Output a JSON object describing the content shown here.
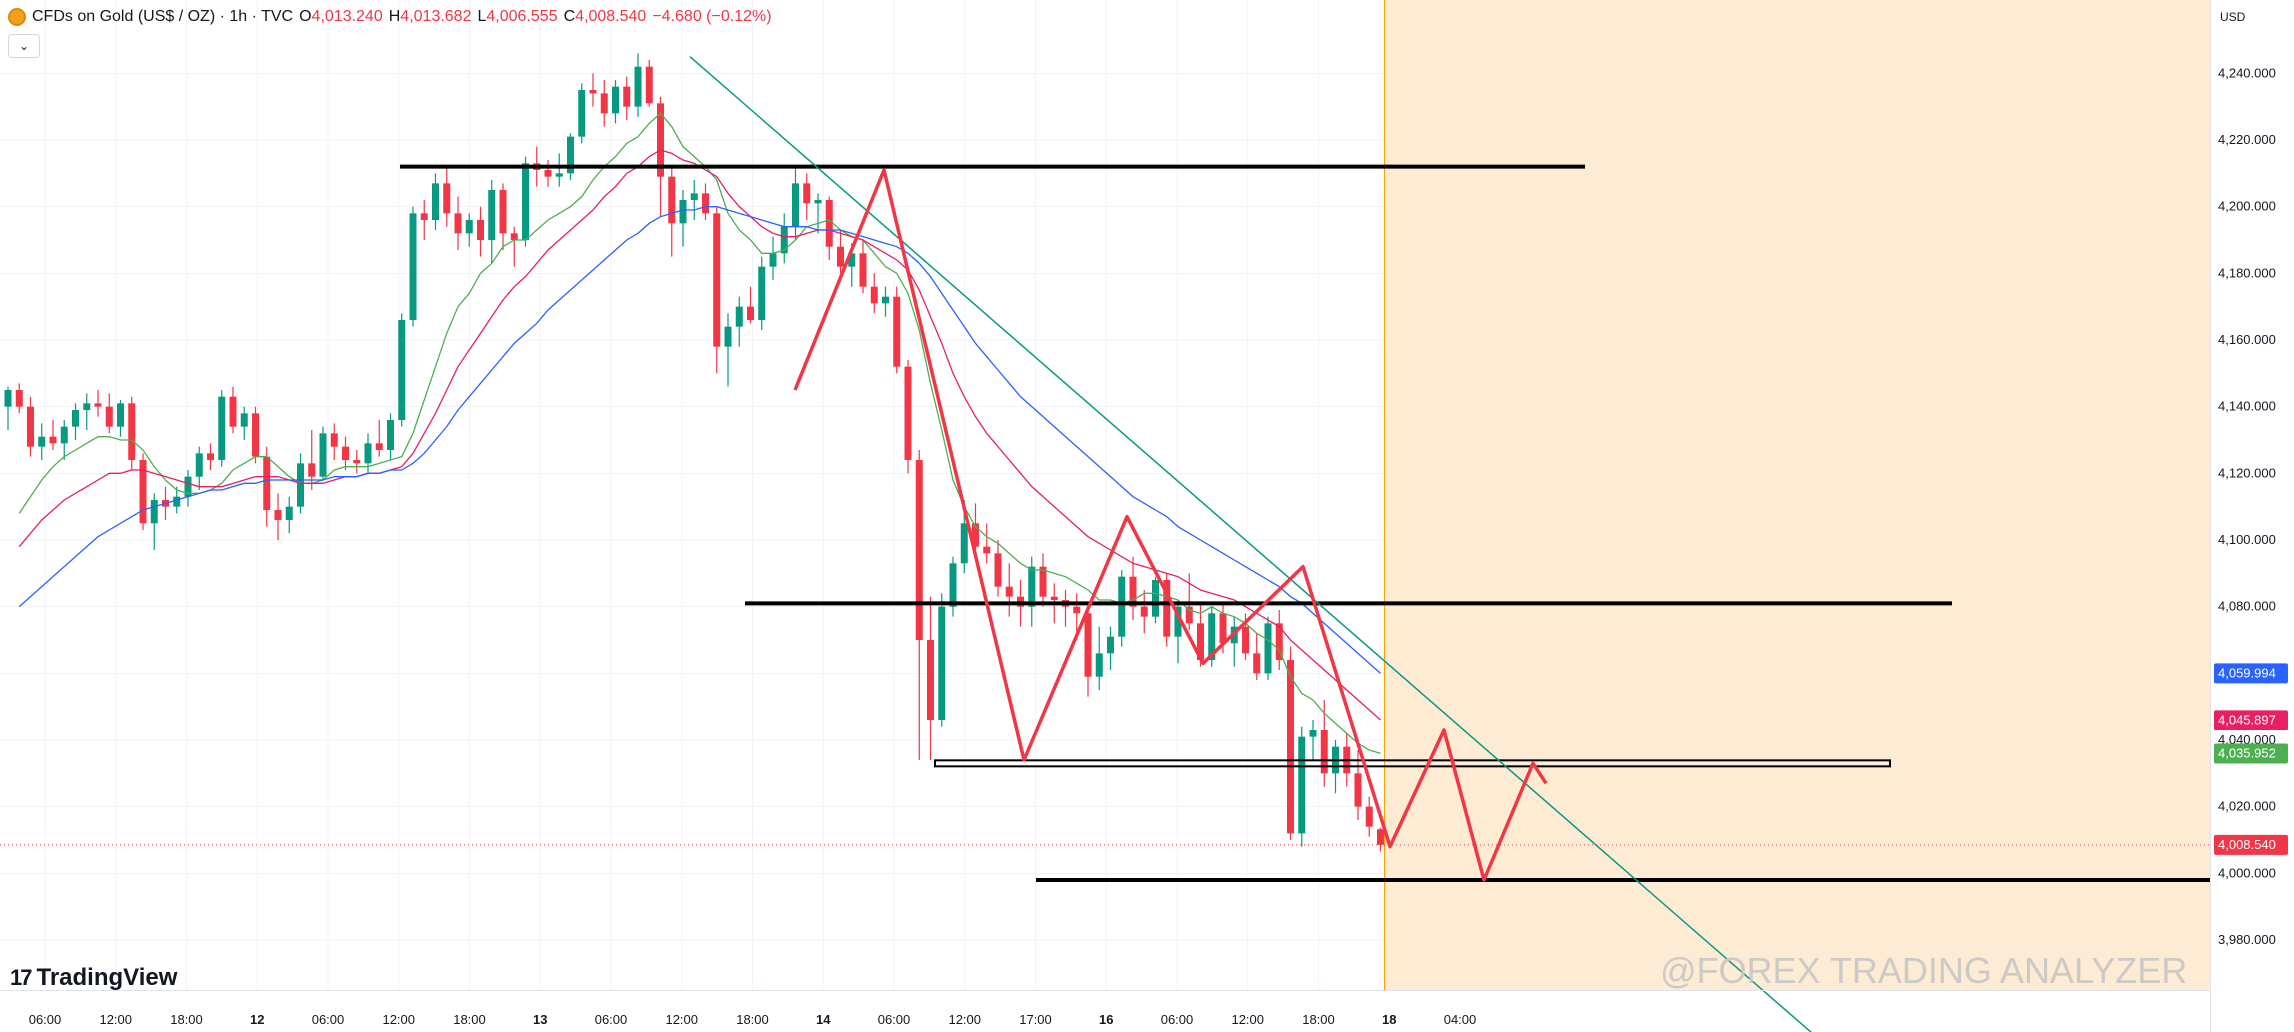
{
  "header": {
    "title": "CFDs on Gold (US$ / OZ) · 1h · TVC",
    "open_label": "O",
    "open": "4,013.240",
    "high_label": "H",
    "high": "4,013.682",
    "low_label": "L",
    "low": "4,006.555",
    "close_label": "C",
    "close": "4,008.540",
    "change": "−4.680 (−0.12%)",
    "collapse_icon": "chevron-down-icon"
  },
  "currency": "USD",
  "branding": {
    "logo": "TradingView",
    "watermark": "@FOREX TRADING ANALYZER"
  },
  "colors": {
    "up": "#089981",
    "down": "#f23645",
    "ma_fast": "#4caf50",
    "ma_mid": "#e91e63",
    "ma_slow": "#2962ff",
    "trendline": "#089981",
    "zigzag": "#f23645",
    "forecast_zone": "#fdebd3",
    "current_time_line": "#f7a600"
  },
  "chart_data": {
    "type": "candlestick",
    "y_axis": {
      "ylim": [
        3965,
        4250
      ],
      "ticks": [
        "3,980.000",
        "4,000.000",
        "4,020.000",
        "4,040.000",
        "4,060.000",
        "4,080.000",
        "4,100.000",
        "4,120.000",
        "4,140.000",
        "4,160.000",
        "4,180.000",
        "4,200.000",
        "4,220.000",
        "4,240.000"
      ]
    },
    "x_axis": {
      "ticks": [
        {
          "label": "06:00",
          "bold": false
        },
        {
          "label": "12:00",
          "bold": false
        },
        {
          "label": "18:00",
          "bold": false
        },
        {
          "label": "12",
          "bold": true
        },
        {
          "label": "06:00",
          "bold": false
        },
        {
          "label": "12:00",
          "bold": false
        },
        {
          "label": "18:00",
          "bold": false
        },
        {
          "label": "13",
          "bold": true
        },
        {
          "label": "06:00",
          "bold": false
        },
        {
          "label": "12:00",
          "bold": false
        },
        {
          "label": "18:00",
          "bold": false
        },
        {
          "label": "14",
          "bold": true
        },
        {
          "label": "06:00",
          "bold": false
        },
        {
          "label": "12:00",
          "bold": false
        },
        {
          "label": "17:00",
          "bold": false
        },
        {
          "label": "16",
          "bold": true
        },
        {
          "label": "06:00",
          "bold": false
        },
        {
          "label": "12:00",
          "bold": false
        },
        {
          "label": "18:00",
          "bold": false
        },
        {
          "label": "18",
          "bold": true
        },
        {
          "label": "04:00",
          "bold": false
        }
      ]
    },
    "candles": [
      {
        "o": 4140,
        "h": 4146,
        "l": 4133,
        "c": 4145
      },
      {
        "o": 4145,
        "h": 4147,
        "l": 4138,
        "c": 4140
      },
      {
        "o": 4140,
        "h": 4143,
        "l": 4125,
        "c": 4128
      },
      {
        "o": 4128,
        "h": 4135,
        "l": 4124,
        "c": 4131
      },
      {
        "o": 4131,
        "h": 4136,
        "l": 4127,
        "c": 4129
      },
      {
        "o": 4129,
        "h": 4136,
        "l": 4124,
        "c": 4134
      },
      {
        "o": 4134,
        "h": 4141,
        "l": 4130,
        "c": 4139
      },
      {
        "o": 4139,
        "h": 4144,
        "l": 4133,
        "c": 4141
      },
      {
        "o": 4141,
        "h": 4145,
        "l": 4137,
        "c": 4140
      },
      {
        "o": 4140,
        "h": 4144,
        "l": 4132,
        "c": 4134
      },
      {
        "o": 4134,
        "h": 4142,
        "l": 4131,
        "c": 4141
      },
      {
        "o": 4141,
        "h": 4143,
        "l": 4121,
        "c": 4124
      },
      {
        "o": 4124,
        "h": 4126,
        "l": 4103,
        "c": 4105
      },
      {
        "o": 4105,
        "h": 4114,
        "l": 4097,
        "c": 4112
      },
      {
        "o": 4112,
        "h": 4116,
        "l": 4106,
        "c": 4110
      },
      {
        "o": 4110,
        "h": 4116,
        "l": 4108,
        "c": 4113
      },
      {
        "o": 4113,
        "h": 4121,
        "l": 4110,
        "c": 4119
      },
      {
        "o": 4119,
        "h": 4128,
        "l": 4115,
        "c": 4126
      },
      {
        "o": 4126,
        "h": 4129,
        "l": 4121,
        "c": 4124
      },
      {
        "o": 4124,
        "h": 4145,
        "l": 4122,
        "c": 4143
      },
      {
        "o": 4143,
        "h": 4146,
        "l": 4132,
        "c": 4134
      },
      {
        "o": 4134,
        "h": 4140,
        "l": 4130,
        "c": 4138
      },
      {
        "o": 4138,
        "h": 4140,
        "l": 4123,
        "c": 4125
      },
      {
        "o": 4125,
        "h": 4128,
        "l": 4104,
        "c": 4109
      },
      {
        "o": 4109,
        "h": 4114,
        "l": 4100,
        "c": 4106
      },
      {
        "o": 4106,
        "h": 4113,
        "l": 4102,
        "c": 4110
      },
      {
        "o": 4110,
        "h": 4126,
        "l": 4108,
        "c": 4123
      },
      {
        "o": 4123,
        "h": 4133,
        "l": 4115,
        "c": 4119
      },
      {
        "o": 4119,
        "h": 4134,
        "l": 4118,
        "c": 4132
      },
      {
        "o": 4132,
        "h": 4135,
        "l": 4124,
        "c": 4128
      },
      {
        "o": 4128,
        "h": 4131,
        "l": 4121,
        "c": 4124
      },
      {
        "o": 4124,
        "h": 4127,
        "l": 4120,
        "c": 4123
      },
      {
        "o": 4123,
        "h": 4132,
        "l": 4120,
        "c": 4129
      },
      {
        "o": 4129,
        "h": 4136,
        "l": 4125,
        "c": 4127
      },
      {
        "o": 4127,
        "h": 4138,
        "l": 4124,
        "c": 4136
      },
      {
        "o": 4136,
        "h": 4168,
        "l": 4134,
        "c": 4166
      },
      {
        "o": 4166,
        "h": 4200,
        "l": 4164,
        "c": 4198
      },
      {
        "o": 4198,
        "h": 4202,
        "l": 4190,
        "c": 4196
      },
      {
        "o": 4196,
        "h": 4210,
        "l": 4193,
        "c": 4207
      },
      {
        "o": 4207,
        "h": 4212,
        "l": 4194,
        "c": 4198
      },
      {
        "o": 4198,
        "h": 4203,
        "l": 4187,
        "c": 4192
      },
      {
        "o": 4192,
        "h": 4198,
        "l": 4188,
        "c": 4196
      },
      {
        "o": 4196,
        "h": 4200,
        "l": 4185,
        "c": 4190
      },
      {
        "o": 4190,
        "h": 4208,
        "l": 4183,
        "c": 4205
      },
      {
        "o": 4205,
        "h": 4207,
        "l": 4187,
        "c": 4192
      },
      {
        "o": 4192,
        "h": 4194,
        "l": 4182,
        "c": 4190
      },
      {
        "o": 4190,
        "h": 4215,
        "l": 4188,
        "c": 4213
      },
      {
        "o": 4213,
        "h": 4218,
        "l": 4206,
        "c": 4211
      },
      {
        "o": 4211,
        "h": 4214,
        "l": 4206,
        "c": 4209
      },
      {
        "o": 4209,
        "h": 4216,
        "l": 4206,
        "c": 4210
      },
      {
        "o": 4210,
        "h": 4222,
        "l": 4208,
        "c": 4221
      },
      {
        "o": 4221,
        "h": 4237,
        "l": 4219,
        "c": 4235
      },
      {
        "o": 4235,
        "h": 4240,
        "l": 4230,
        "c": 4234
      },
      {
        "o": 4234,
        "h": 4238,
        "l": 4224,
        "c": 4228
      },
      {
        "o": 4228,
        "h": 4238,
        "l": 4225,
        "c": 4236
      },
      {
        "o": 4236,
        "h": 4239,
        "l": 4226,
        "c": 4230
      },
      {
        "o": 4230,
        "h": 4246,
        "l": 4227,
        "c": 4242
      },
      {
        "o": 4242,
        "h": 4244,
        "l": 4230,
        "c": 4231
      },
      {
        "o": 4231,
        "h": 4233,
        "l": 4197,
        "c": 4209
      },
      {
        "o": 4209,
        "h": 4212,
        "l": 4185,
        "c": 4195
      },
      {
        "o": 4195,
        "h": 4205,
        "l": 4188,
        "c": 4202
      },
      {
        "o": 4202,
        "h": 4208,
        "l": 4196,
        "c": 4204
      },
      {
        "o": 4204,
        "h": 4207,
        "l": 4196,
        "c": 4198
      },
      {
        "o": 4198,
        "h": 4200,
        "l": 4150,
        "c": 4158
      },
      {
        "o": 4158,
        "h": 4168,
        "l": 4146,
        "c": 4164
      },
      {
        "o": 4164,
        "h": 4173,
        "l": 4158,
        "c": 4170
      },
      {
        "o": 4170,
        "h": 4176,
        "l": 4165,
        "c": 4166
      },
      {
        "o": 4166,
        "h": 4185,
        "l": 4163,
        "c": 4182
      },
      {
        "o": 4182,
        "h": 4191,
        "l": 4178,
        "c": 4186
      },
      {
        "o": 4186,
        "h": 4198,
        "l": 4183,
        "c": 4194
      },
      {
        "o": 4194,
        "h": 4212,
        "l": 4190,
        "c": 4207
      },
      {
        "o": 4207,
        "h": 4210,
        "l": 4196,
        "c": 4201
      },
      {
        "o": 4201,
        "h": 4204,
        "l": 4192,
        "c": 4202
      },
      {
        "o": 4202,
        "h": 4203,
        "l": 4184,
        "c": 4188
      },
      {
        "o": 4188,
        "h": 4193,
        "l": 4180,
        "c": 4182
      },
      {
        "o": 4182,
        "h": 4189,
        "l": 4176,
        "c": 4186
      },
      {
        "o": 4186,
        "h": 4190,
        "l": 4174,
        "c": 4176
      },
      {
        "o": 4176,
        "h": 4180,
        "l": 4168,
        "c": 4171
      },
      {
        "o": 4171,
        "h": 4176,
        "l": 4167,
        "c": 4173
      },
      {
        "o": 4173,
        "h": 4176,
        "l": 4150,
        "c": 4152
      },
      {
        "o": 4152,
        "h": 4154,
        "l": 4120,
        "c": 4124
      },
      {
        "o": 4124,
        "h": 4127,
        "l": 4034,
        "c": 4070
      },
      {
        "o": 4070,
        "h": 4083,
        "l": 4034,
        "c": 4046
      },
      {
        "o": 4046,
        "h": 4084,
        "l": 4044,
        "c": 4080
      },
      {
        "o": 4080,
        "h": 4095,
        "l": 4077,
        "c": 4093
      },
      {
        "o": 4093,
        "h": 4112,
        "l": 4090,
        "c": 4105
      },
      {
        "o": 4105,
        "h": 4111,
        "l": 4097,
        "c": 4098
      },
      {
        "o": 4098,
        "h": 4105,
        "l": 4093,
        "c": 4096
      },
      {
        "o": 4096,
        "h": 4100,
        "l": 4083,
        "c": 4086
      },
      {
        "o": 4086,
        "h": 4093,
        "l": 4077,
        "c": 4083
      },
      {
        "o": 4083,
        "h": 4088,
        "l": 4074,
        "c": 4080
      },
      {
        "o": 4080,
        "h": 4095,
        "l": 4074,
        "c": 4092
      },
      {
        "o": 4092,
        "h": 4096,
        "l": 4080,
        "c": 4083
      },
      {
        "o": 4083,
        "h": 4087,
        "l": 4075,
        "c": 4082
      },
      {
        "o": 4082,
        "h": 4085,
        "l": 4074,
        "c": 4080
      },
      {
        "o": 4080,
        "h": 4084,
        "l": 4070,
        "c": 4078
      },
      {
        "o": 4078,
        "h": 4081,
        "l": 4053,
        "c": 4059
      },
      {
        "o": 4059,
        "h": 4074,
        "l": 4055,
        "c": 4066
      },
      {
        "o": 4066,
        "h": 4074,
        "l": 4061,
        "c": 4071
      },
      {
        "o": 4071,
        "h": 4091,
        "l": 4068,
        "c": 4089
      },
      {
        "o": 4089,
        "h": 4095,
        "l": 4076,
        "c": 4080
      },
      {
        "o": 4080,
        "h": 4085,
        "l": 4072,
        "c": 4077
      },
      {
        "o": 4077,
        "h": 4089,
        "l": 4075,
        "c": 4088
      },
      {
        "o": 4088,
        "h": 4090,
        "l": 4068,
        "c": 4071
      },
      {
        "o": 4071,
        "h": 4082,
        "l": 4063,
        "c": 4080
      },
      {
        "o": 4080,
        "h": 4090,
        "l": 4073,
        "c": 4075
      },
      {
        "o": 4075,
        "h": 4081,
        "l": 4062,
        "c": 4064
      },
      {
        "o": 4064,
        "h": 4080,
        "l": 4062,
        "c": 4078
      },
      {
        "o": 4078,
        "h": 4081,
        "l": 4066,
        "c": 4069
      },
      {
        "o": 4069,
        "h": 4077,
        "l": 4062,
        "c": 4074
      },
      {
        "o": 4074,
        "h": 4078,
        "l": 4064,
        "c": 4066
      },
      {
        "o": 4066,
        "h": 4072,
        "l": 4058,
        "c": 4060
      },
      {
        "o": 4060,
        "h": 4077,
        "l": 4058,
        "c": 4075
      },
      {
        "o": 4075,
        "h": 4079,
        "l": 4061,
        "c": 4064
      },
      {
        "o": 4064,
        "h": 4068,
        "l": 4010,
        "c": 4012
      },
      {
        "o": 4012,
        "h": 4044,
        "l": 4008,
        "c": 4041
      },
      {
        "o": 4041,
        "h": 4046,
        "l": 4034,
        "c": 4043
      },
      {
        "o": 4043,
        "h": 4052,
        "l": 4026,
        "c": 4030
      },
      {
        "o": 4030,
        "h": 4040,
        "l": 4024,
        "c": 4038
      },
      {
        "o": 4038,
        "h": 4042,
        "l": 4026,
        "c": 4030
      },
      {
        "o": 4030,
        "h": 4037,
        "l": 4016,
        "c": 4020
      },
      {
        "o": 4020,
        "h": 4023,
        "l": 4011,
        "c": 4014
      },
      {
        "o": 4013.24,
        "h": 4013.682,
        "l": 4006.555,
        "c": 4008.54
      }
    ],
    "ma_fast": [
      4108,
      4113,
      4118,
      4122,
      4125,
      4127,
      4129,
      4131,
      4131,
      4130,
      4130,
      4127,
      4122,
      4118,
      4115,
      4114,
      4114,
      4115,
      4117,
      4121,
      4123,
      4125,
      4125,
      4122,
      4119,
      4117,
      4117,
      4118,
      4121,
      4122,
      4122,
      4122,
      4123,
      4124,
      4125,
      4132,
      4142,
      4152,
      4162,
      4170,
      4174,
      4180,
      4183,
      4188,
      4190,
      4190,
      4193,
      4196,
      4198,
      4200,
      4203,
      4208,
      4212,
      4215,
      4219,
      4221,
      4225,
      4228,
      4224,
      4218,
      4215,
      4212,
      4208,
      4198,
      4193,
      4190,
      4186,
      4186,
      4187,
      4190,
      4194,
      4195,
      4196,
      4193,
      4191,
      4190,
      4186,
      4182,
      4180,
      4174,
      4163,
      4147,
      4133,
      4118,
      4110,
      4104,
      4101,
      4099,
      4096,
      4093,
      4091,
      4091,
      4090,
      4089,
      4087,
      4085,
      4082,
      4082,
      4081,
      4082,
      4084,
      4084,
      4083,
      4082,
      4079,
      4078,
      4080,
      4078,
      4077,
      4075,
      4072,
      4070,
      4067,
      4059,
      4054,
      4052,
      4048,
      4045,
      4042,
      4039,
      4037,
      4036
    ],
    "ma_mid": [
      4098,
      4102,
      4106,
      4109,
      4112,
      4114,
      4116,
      4118,
      4120,
      4120,
      4121,
      4121,
      4120,
      4119,
      4118,
      4117,
      4116,
      4116,
      4116,
      4117,
      4118,
      4119,
      4119,
      4119,
      4118,
      4117,
      4117,
      4117,
      4118,
      4119,
      4119,
      4120,
      4120,
      4121,
      4122,
      4126,
      4132,
      4138,
      4145,
      4152,
      4157,
      4162,
      4167,
      4172,
      4176,
      4179,
      4183,
      4187,
      4190,
      4193,
      4196,
      4199,
      4203,
      4206,
      4210,
      4212,
      4215,
      4217,
      4216,
      4214,
      4213,
      4211,
      4209,
      4204,
      4200,
      4197,
      4194,
      4192,
      4191,
      4191,
      4192,
      4193,
      4193,
      4192,
      4191,
      4190,
      4188,
      4186,
      4184,
      4181,
      4175,
      4167,
      4159,
      4150,
      4143,
      4137,
      4132,
      4128,
      4124,
      4120,
      4116,
      4113,
      4110,
      4107,
      4104,
      4101,
      4099,
      4097,
      4095,
      4093,
      4092,
      4091,
      4090,
      4089,
      4087,
      4085,
      4084,
      4083,
      4082,
      4080,
      4078,
      4076,
      4074,
      4070,
      4067,
      4064,
      4061,
      4058,
      4055,
      4052,
      4049,
      4046
    ],
    "ma_slow": [
      4080,
      4083,
      4086,
      4089,
      4092,
      4095,
      4098,
      4101,
      4103,
      4105,
      4107,
      4109,
      4110,
      4111,
      4112,
      4113,
      4114,
      4115,
      4115,
      4116,
      4117,
      4117,
      4118,
      4118,
      4118,
      4118,
      4118,
      4118,
      4119,
      4119,
      4119,
      4120,
      4120,
      4121,
      4121,
      4123,
      4126,
      4130,
      4134,
      4139,
      4143,
      4147,
      4151,
      4155,
      4159,
      4162,
      4165,
      4169,
      4172,
      4175,
      4178,
      4181,
      4184,
      4187,
      4190,
      4192,
      4195,
      4197,
      4198,
      4199,
      4199,
      4200,
      4200,
      4199,
      4198,
      4197,
      4196,
      4195,
      4194,
      4194,
      4194,
      4193,
      4193,
      4193,
      4192,
      4191,
      4190,
      4189,
      4188,
      4186,
      4183,
      4179,
      4174,
      4169,
      4164,
      4159,
      4155,
      4151,
      4147,
      4143,
      4140,
      4137,
      4134,
      4131,
      4128,
      4125,
      4122,
      4119,
      4116,
      4113,
      4111,
      4109,
      4107,
      4104,
      4102,
      4100,
      4098,
      4096,
      4094,
      4092,
      4090,
      4088,
      4086,
      4083,
      4081,
      4078,
      4075,
      4072,
      4069,
      4066,
      4063,
      4060
    ],
    "horizontal_levels": [
      4212,
      4081,
      4033,
      3998
    ],
    "zigzag": [
      4145,
      4211,
      4034,
      4107,
      4063,
      4092,
      4008,
      4043,
      3998,
      4033,
      4027
    ],
    "trendline": [
      4245,
      3950
    ],
    "price_labels": [
      {
        "value": "4,059.994",
        "color": "#2962ff"
      },
      {
        "value": "4,045.897",
        "color": "#e91e63"
      },
      {
        "value": "4,040.000",
        "color": "#ffffff"
      },
      {
        "value": "4,035.952",
        "color": "#4caf50"
      },
      {
        "value": "4,008.540",
        "color": "#f23645"
      }
    ]
  }
}
